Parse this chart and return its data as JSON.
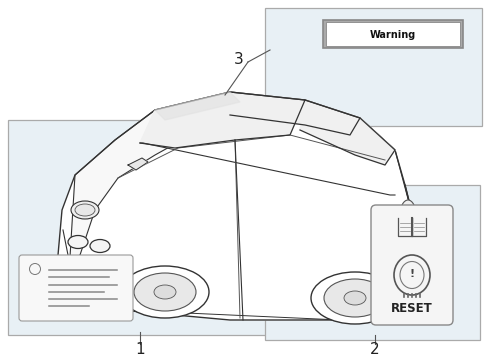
{
  "bg_white": "#ffffff",
  "bg_light": "#e8f0f5",
  "box_edge": "#aaaaaa",
  "car_edge": "#333333",
  "car_face": "#ffffff",
  "line_color": "#555555",
  "warn_text": "Warning",
  "reset_text": "RESET",
  "label1": "1",
  "label2": "2",
  "label3": "3",
  "figsize": [
    4.9,
    3.6
  ],
  "dpi": 100
}
